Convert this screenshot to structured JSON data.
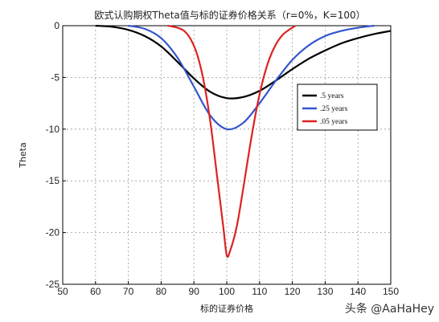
{
  "watermark": "头条 @AaHaHey",
  "chart_data": {
    "type": "line",
    "title": "欧式认购期权Theta值与标的证券价格关系（r=0%，K=100）",
    "xlabel": "标的证券价格",
    "ylabel": "Theta",
    "xlim": [
      50,
      150
    ],
    "ylim": [
      -25,
      0
    ],
    "xticks": [
      50,
      60,
      70,
      80,
      90,
      100,
      110,
      120,
      130,
      140,
      150
    ],
    "yticks": [
      0,
      -5,
      -10,
      -15,
      -20,
      -25
    ],
    "grid": true,
    "legend_position": "right",
    "series": [
      {
        "name": ".5 years",
        "color": "#000000",
        "x": [
          60,
          65,
          70,
          75,
          80,
          85,
          90,
          95,
          100,
          105,
          110,
          115,
          120,
          125,
          130,
          135,
          140,
          145,
          150
        ],
        "y": [
          0,
          -0.1,
          -0.4,
          -1.0,
          -2.0,
          -3.5,
          -5.1,
          -6.4,
          -7.0,
          -6.9,
          -6.3,
          -5.3,
          -4.2,
          -3.2,
          -2.4,
          -1.7,
          -1.2,
          -0.8,
          -0.5
        ]
      },
      {
        "name": ".25 years",
        "color": "#3355cc",
        "x": [
          70,
          75,
          80,
          85,
          90,
          95,
          100,
          105,
          110,
          115,
          120,
          125,
          130,
          135,
          140,
          145
        ],
        "y": [
          0,
          -0.3,
          -1.2,
          -3.1,
          -5.9,
          -8.7,
          -10.0,
          -9.4,
          -7.5,
          -5.3,
          -3.3,
          -1.9,
          -1.0,
          -0.5,
          -0.2,
          0
        ]
      },
      {
        "name": ".05 years",
        "color": "#dd2222",
        "x": [
          82,
          85,
          87,
          89,
          91,
          93,
          95,
          97,
          99,
          100,
          101,
          103,
          105,
          107,
          109,
          111,
          113,
          115,
          117,
          119,
          121
        ],
        "y": [
          0,
          -0.2,
          -0.5,
          -1.3,
          -2.8,
          -5.4,
          -9.3,
          -14.4,
          -19.6,
          -22.2,
          -21.8,
          -19.5,
          -15.8,
          -11.8,
          -8.2,
          -5.3,
          -3.2,
          -1.8,
          -0.9,
          -0.4,
          0
        ]
      }
    ]
  }
}
